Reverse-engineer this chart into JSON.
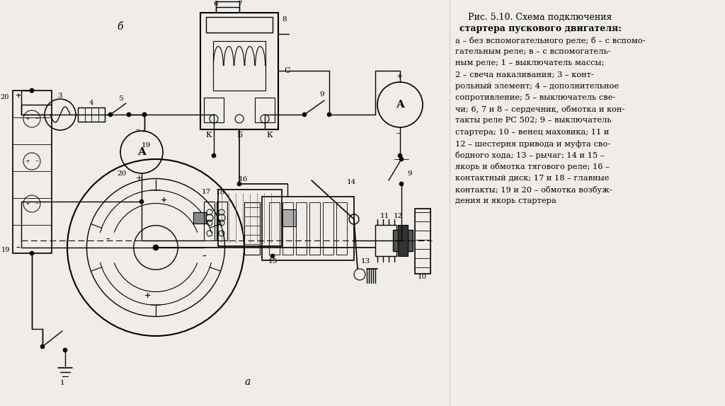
{
  "background_color": "#f0ede8",
  "fig_width": 10.24,
  "fig_height": 5.74,
  "dpi": 100,
  "title_line1": "Рис. 5.10. Схема подключения",
  "title_line2": "стартера пускового двигателя:",
  "desc_lines": [
    "а – без вспомогательного реле; б – с вспомо-",
    "гательным реле; в – с вспомогатель-",
    "ным реле; 1 – выключатель массы;",
    "2 – свеча накаливания; 3 – конт-",
    "рольный элемент; 4 – дополнительное",
    "сопротивление; 5 – выключатель све-",
    "чи; 6, 7 и 8 – сердечник, обмотка и кон-",
    "такты реле РС 502; 9 – выключатель",
    "стартера; 10 – венец маховика; 11 и",
    "12 – шестерня привода и муфта сво-",
    "бодного хода; 13 – рычаг; 14 и 15 –",
    "якорь и обмотка тягового реле; 16 –",
    "контактный диск; 17 и 18 – главные",
    "контакты; 19 и 20 – обмотка возбуж-",
    "дения и якорь стартера"
  ]
}
